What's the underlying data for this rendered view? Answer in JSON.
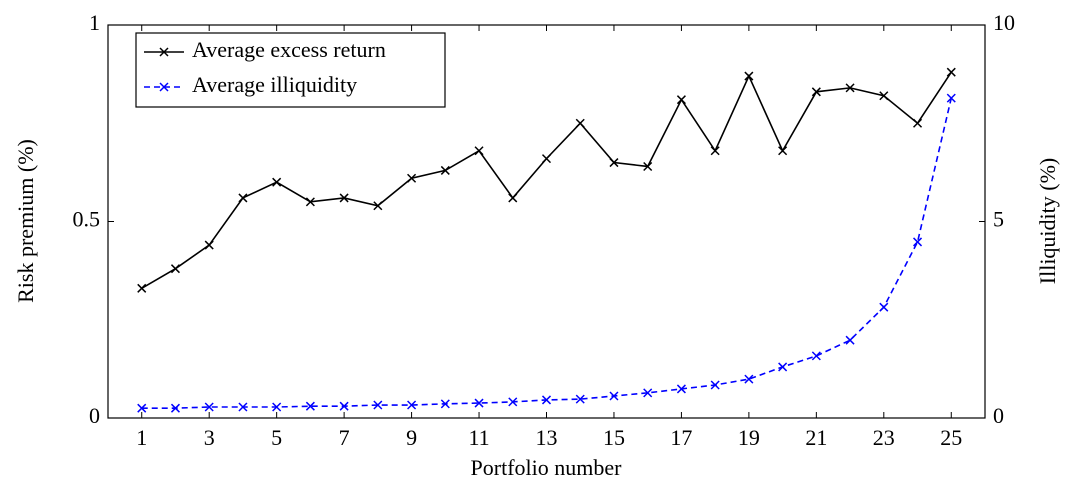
{
  "chart_data": {
    "type": "line",
    "xlabel": "Portfolio number",
    "ylabel": "Risk premium (%)",
    "y2label": "Illiquidity (%)",
    "x": [
      1,
      2,
      3,
      4,
      5,
      6,
      7,
      8,
      9,
      10,
      11,
      12,
      13,
      14,
      15,
      16,
      17,
      18,
      19,
      20,
      21,
      22,
      23,
      24,
      25
    ],
    "xlim": [
      0,
      26
    ],
    "xticks": [
      1,
      3,
      5,
      7,
      9,
      11,
      13,
      15,
      17,
      19,
      21,
      23,
      25
    ],
    "ylim": [
      0,
      1
    ],
    "yticks": [
      0,
      0.5,
      1
    ],
    "y2lim": [
      0,
      10
    ],
    "y2ticks": [
      0,
      5,
      10
    ],
    "legend": "upper left",
    "series": [
      {
        "name": "Average excess return",
        "color": "#000000",
        "dashed": false,
        "values": [
          0.33,
          0.38,
          0.44,
          0.56,
          0.6,
          0.55,
          0.56,
          0.54,
          0.61,
          0.63,
          0.68,
          0.56,
          0.66,
          0.75,
          0.65,
          0.64,
          0.81,
          0.68,
          0.87,
          0.68,
          0.83,
          0.84,
          0.82,
          0.75,
          0.88
        ]
      },
      {
        "name": "Average illiquidity",
        "color": "#0000ff",
        "dashed": true,
        "axis": "y2",
        "values": [
          0.25,
          0.25,
          0.28,
          0.28,
          0.28,
          0.3,
          0.3,
          0.33,
          0.33,
          0.36,
          0.38,
          0.41,
          0.46,
          0.48,
          0.56,
          0.64,
          0.74,
          0.84,
          0.99,
          1.3,
          1.58,
          1.98,
          2.82,
          4.48,
          8.14
        ]
      }
    ]
  }
}
